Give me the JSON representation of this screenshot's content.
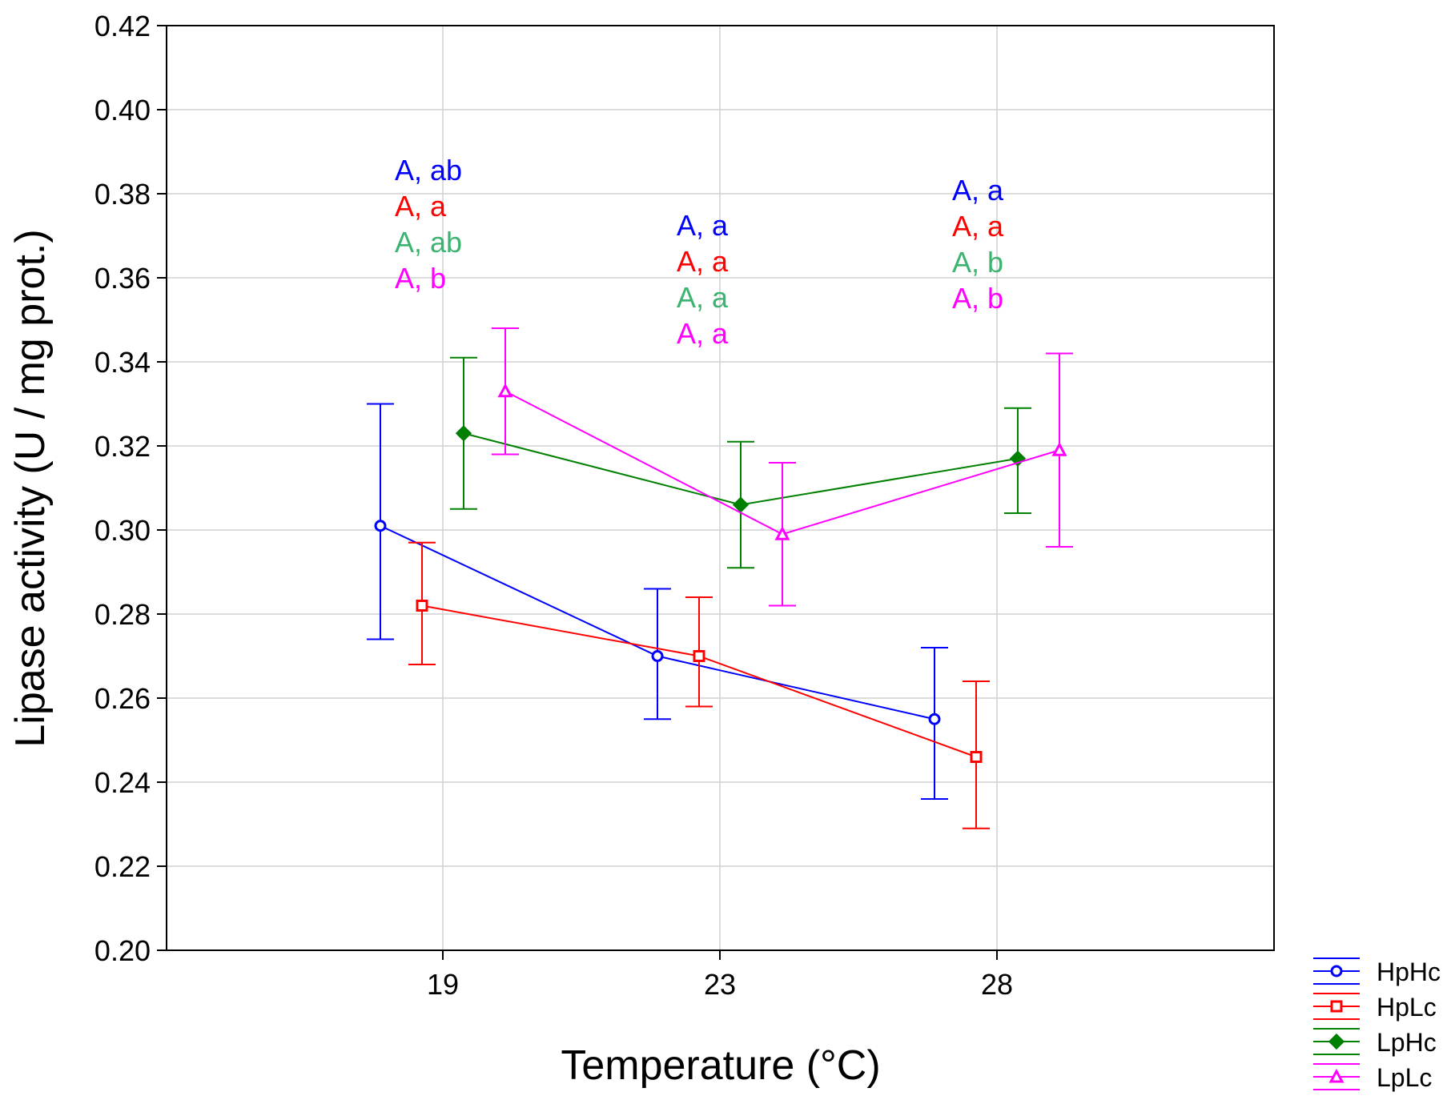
{
  "chart_data": {
    "type": "line",
    "xlabel": "Temperature (°C)",
    "ylabel": "Lipase activity (U / mg prot.)",
    "ylim": [
      0.2,
      0.42
    ],
    "yticks": [
      "0.20",
      "0.22",
      "0.24",
      "0.26",
      "0.28",
      "0.30",
      "0.32",
      "0.34",
      "0.36",
      "0.38",
      "0.40",
      "0.42"
    ],
    "categories": [
      "19",
      "23",
      "28"
    ],
    "grid": true,
    "legend_position": "bottom-right",
    "series": [
      {
        "name": "HpHc",
        "color": "#0000ff",
        "marker": "circle",
        "values": [
          0.301,
          0.27,
          0.255
        ],
        "err_low": [
          0.274,
          0.255,
          0.236
        ],
        "err_high": [
          0.33,
          0.286,
          0.272
        ]
      },
      {
        "name": "HpLc",
        "color": "#ff0000",
        "marker": "square",
        "values": [
          0.282,
          0.27,
          0.246
        ],
        "err_low": [
          0.268,
          0.258,
          0.229
        ],
        "err_high": [
          0.297,
          0.284,
          0.264
        ]
      },
      {
        "name": "LpHc",
        "color": "#008000",
        "marker": "diamond",
        "values": [
          0.323,
          0.306,
          0.317
        ],
        "err_low": [
          0.305,
          0.291,
          0.304
        ],
        "err_high": [
          0.341,
          0.321,
          0.329
        ]
      },
      {
        "name": "LpLc",
        "color": "#ff00ff",
        "marker": "triangle",
        "values": [
          0.333,
          0.299,
          0.319
        ],
        "err_low": [
          0.318,
          0.282,
          0.296
        ],
        "err_high": [
          0.348,
          0.316,
          0.342
        ]
      }
    ],
    "annotations": [
      {
        "category": "19",
        "labels": [
          {
            "text": "A, ab",
            "color": "#0000ff"
          },
          {
            "text": "A, a",
            "color": "#ff0000"
          },
          {
            "text": "A, ab",
            "color": "#3cb371"
          },
          {
            "text": "A, b",
            "color": "#ff00ff"
          }
        ]
      },
      {
        "category": "23",
        "labels": [
          {
            "text": "A, a",
            "color": "#0000ff"
          },
          {
            "text": "A, a",
            "color": "#ff0000"
          },
          {
            "text": "A, a",
            "color": "#3cb371"
          },
          {
            "text": "A, a",
            "color": "#ff00ff"
          }
        ]
      },
      {
        "category": "28",
        "labels": [
          {
            "text": "A, a",
            "color": "#0000ff"
          },
          {
            "text": "A, a",
            "color": "#ff0000"
          },
          {
            "text": "A, b",
            "color": "#3cb371"
          },
          {
            "text": "A, b",
            "color": "#ff00ff"
          }
        ]
      }
    ]
  }
}
